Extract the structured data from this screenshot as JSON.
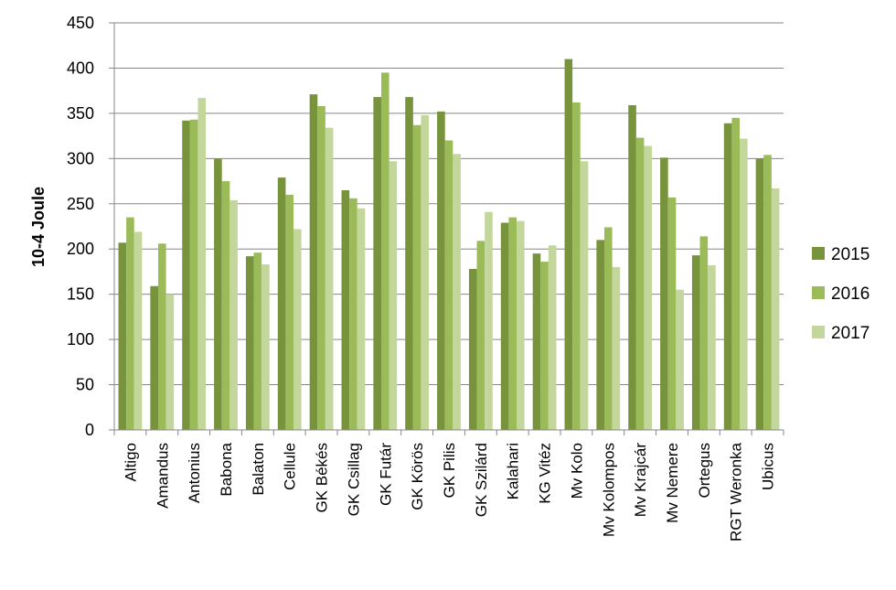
{
  "chart_data": {
    "type": "bar",
    "title": "",
    "xlabel": "",
    "ylabel": "10-4 Joule",
    "ylim": [
      0,
      450
    ],
    "yticks": [
      0,
      50,
      100,
      150,
      200,
      250,
      300,
      350,
      400,
      450
    ],
    "grid": true,
    "legend_position": "right",
    "categories": [
      "Altigo",
      "Amandus",
      "Antonius",
      "Babona",
      "Balaton",
      "Cellule",
      "GK Békés",
      "GK Csillag",
      "GK Futár",
      "GK Körös",
      "GK Pilis",
      "GK Szilárd",
      "Kalahari",
      "KG Vitéz",
      "Mv Kolo",
      "Mv Kolompos",
      "Mv Krajcár",
      "Mv Nemere",
      "Ortegus",
      "RGT Weronka",
      "Ubicus"
    ],
    "series": [
      {
        "name": "2015",
        "color": "#77933c",
        "values": [
          207,
          159,
          342,
          300,
          192,
          279,
          371,
          265,
          368,
          368,
          352,
          178,
          229,
          195,
          410,
          210,
          359,
          301,
          193,
          339,
          300
        ]
      },
      {
        "name": "2016",
        "color": "#9bbb59",
        "values": [
          235,
          206,
          343,
          275,
          196,
          260,
          358,
          256,
          395,
          337,
          320,
          209,
          235,
          186,
          362,
          224,
          323,
          257,
          214,
          345,
          304
        ]
      },
      {
        "name": "2017",
        "color": "#c3d69b",
        "values": [
          219,
          150,
          367,
          254,
          183,
          222,
          334,
          245,
          297,
          348,
          305,
          241,
          231,
          204,
          297,
          180,
          314,
          155,
          182,
          322,
          267
        ]
      }
    ]
  }
}
